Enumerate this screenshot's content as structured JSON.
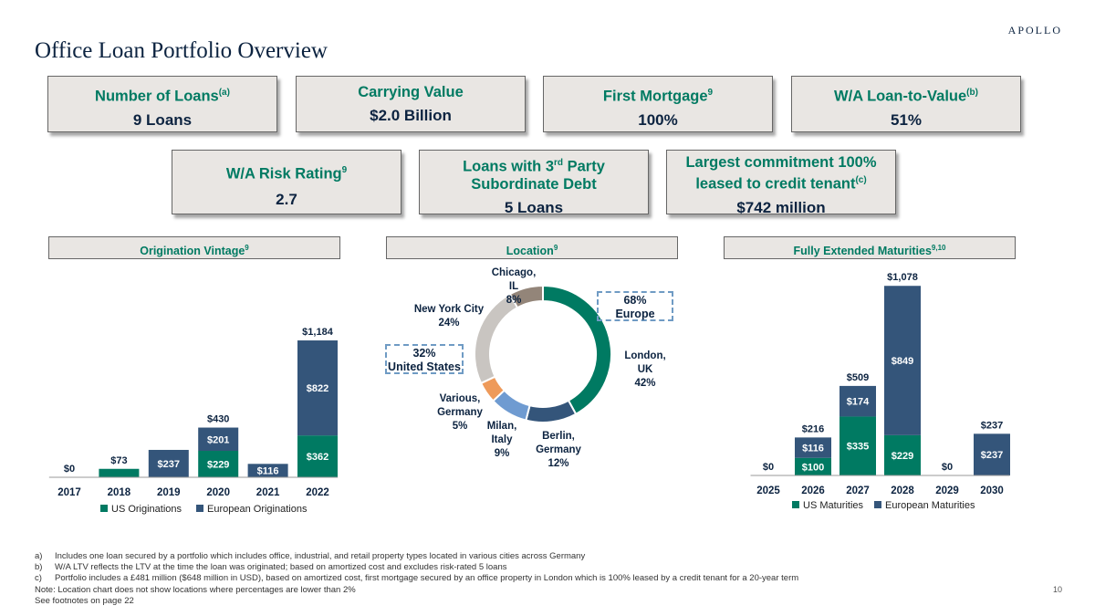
{
  "brand": "APOLLO",
  "title": "Office Loan Portfolio Overview",
  "kpis": {
    "loans": {
      "label": "Number of Loans",
      "sup": "(a)",
      "value": "9 Loans"
    },
    "carrying": {
      "label": "Carrying Value",
      "value": "$2.0 Billion"
    },
    "first_mortgage": {
      "label": "First Mortgage",
      "sup": "9",
      "value": "100%"
    },
    "ltv": {
      "label": "W/A Loan-to-Value",
      "sup": "(b)",
      "value": "51%"
    },
    "risk": {
      "label": "W/A Risk Rating",
      "sup": "9",
      "value": "2.7"
    },
    "subordinate": {
      "label_a": "Loans with 3",
      "sup": "rd",
      "label_b": " Party",
      "label_c": "Subordinate Debt",
      "value": "5 Loans"
    },
    "largest": {
      "label_a": "Largest commitment 100%",
      "label_b": "leased to credit tenant",
      "sup": "(c)",
      "value": "$742 million"
    }
  },
  "sections": {
    "vintage": {
      "label": "Origination Vintage",
      "sup": "9"
    },
    "location": {
      "label": "Location",
      "sup": "9"
    },
    "maturities": {
      "label": "Fully Extended Maturities",
      "sup": "9,10"
    }
  },
  "callouts": {
    "europe": {
      "pct": "68%",
      "label": "Europe"
    },
    "us": {
      "pct": "32%",
      "label": "United States"
    }
  },
  "colors": {
    "us": "#007a62",
    "europe": "#34557a",
    "green": "#007a62",
    "navy": "#0c2340"
  },
  "chart_data": [
    {
      "type": "bar",
      "stacked": true,
      "title": "Origination Vintage",
      "categories": [
        "2017",
        "2018",
        "2019",
        "2020",
        "2021",
        "2022"
      ],
      "series": [
        {
          "name": "US Originations",
          "values": [
            0,
            73,
            0,
            229,
            0,
            362
          ],
          "labels": [
            "",
            "",
            "",
            "$229",
            "",
            "$362"
          ]
        },
        {
          "name": "European Originations",
          "values": [
            0,
            0,
            237,
            201,
            116,
            822
          ],
          "labels": [
            "",
            "",
            "$237",
            "$201",
            "$116",
            "$822"
          ]
        }
      ],
      "totals": [
        0,
        73,
        237,
        430,
        116,
        1184
      ],
      "total_labels": [
        "$0",
        "$73",
        "",
        "$430",
        "",
        "$1,184"
      ],
      "ylim": [
        0,
        1200
      ]
    },
    {
      "type": "pie",
      "donut": true,
      "title": "Location",
      "slices": [
        {
          "name": "London, UK",
          "value": 42,
          "label": "42%",
          "color": "#007a62"
        },
        {
          "name": "Berlin, Germany",
          "value": 12,
          "label": "12%",
          "color": "#34557a"
        },
        {
          "name": "Milan, Italy",
          "value": 9,
          "label": "9%",
          "color": "#6f9bd1"
        },
        {
          "name": "Various, Germany",
          "value": 5,
          "label": "5%",
          "color": "#ee9a5a"
        },
        {
          "name": "New York City",
          "value": 24,
          "label": "24%",
          "color": "#c9c5c1"
        },
        {
          "name": "Chicago, IL",
          "value": 8,
          "label": "8%",
          "color": "#938579"
        }
      ]
    },
    {
      "type": "bar",
      "stacked": true,
      "title": "Fully Extended Maturities",
      "categories": [
        "2025",
        "2026",
        "2027",
        "2028",
        "2029",
        "2030"
      ],
      "series": [
        {
          "name": "US Maturities",
          "values": [
            0,
            100,
            335,
            229,
            0,
            0
          ],
          "labels": [
            "",
            "$100",
            "$335",
            "$229",
            "",
            ""
          ]
        },
        {
          "name": "European Maturities",
          "values": [
            0,
            116,
            174,
            849,
            0,
            237
          ],
          "labels": [
            "",
            "$116",
            "$174",
            "$849",
            "",
            "$237"
          ]
        }
      ],
      "totals": [
        0,
        216,
        509,
        1078,
        0,
        237
      ],
      "total_labels": [
        "$0",
        "$216",
        "$509",
        "$1,078",
        "$0",
        "$237"
      ],
      "ylim": [
        0,
        1100
      ]
    }
  ],
  "footnotes": [
    {
      "key": "a)",
      "text": "Includes one loan secured by a portfolio which includes office, industrial, and retail property types located in various cities across Germany"
    },
    {
      "key": "b)",
      "text": "W/A LTV reflects the LTV at the time the loan was originated; based on amortized cost and excludes risk-rated 5 loans"
    },
    {
      "key": "c)",
      "text": "Portfolio includes a £481 million ($648 million in USD), based on amortized cost, first mortgage secured by an office property in London which is 100% leased by a credit tenant for a 20-year term"
    }
  ],
  "note": "Note: Location chart does not show locations where percentages are lower than 2%",
  "see": "See footnotes on page 22",
  "page": "10"
}
